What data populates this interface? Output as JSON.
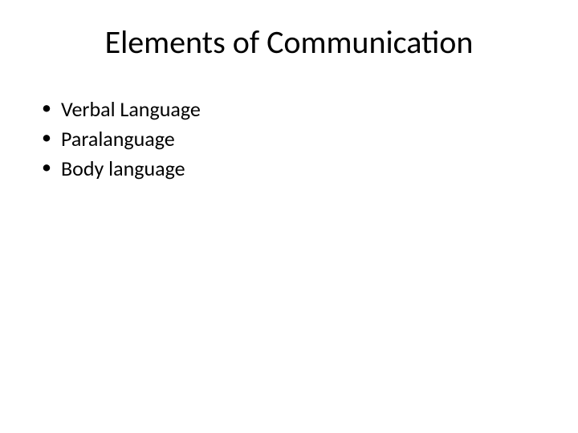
{
  "slide": {
    "title": "Elements of Communication",
    "title_fontsize": 40,
    "title_color": "#000000",
    "background_color": "#ffffff",
    "bullets": [
      {
        "text": "Verbal Language"
      },
      {
        "text": "Paralanguage"
      },
      {
        "text": "Body language"
      }
    ],
    "bullet_fontsize": 26,
    "bullet_color": "#000000",
    "bullet_marker": "•"
  }
}
